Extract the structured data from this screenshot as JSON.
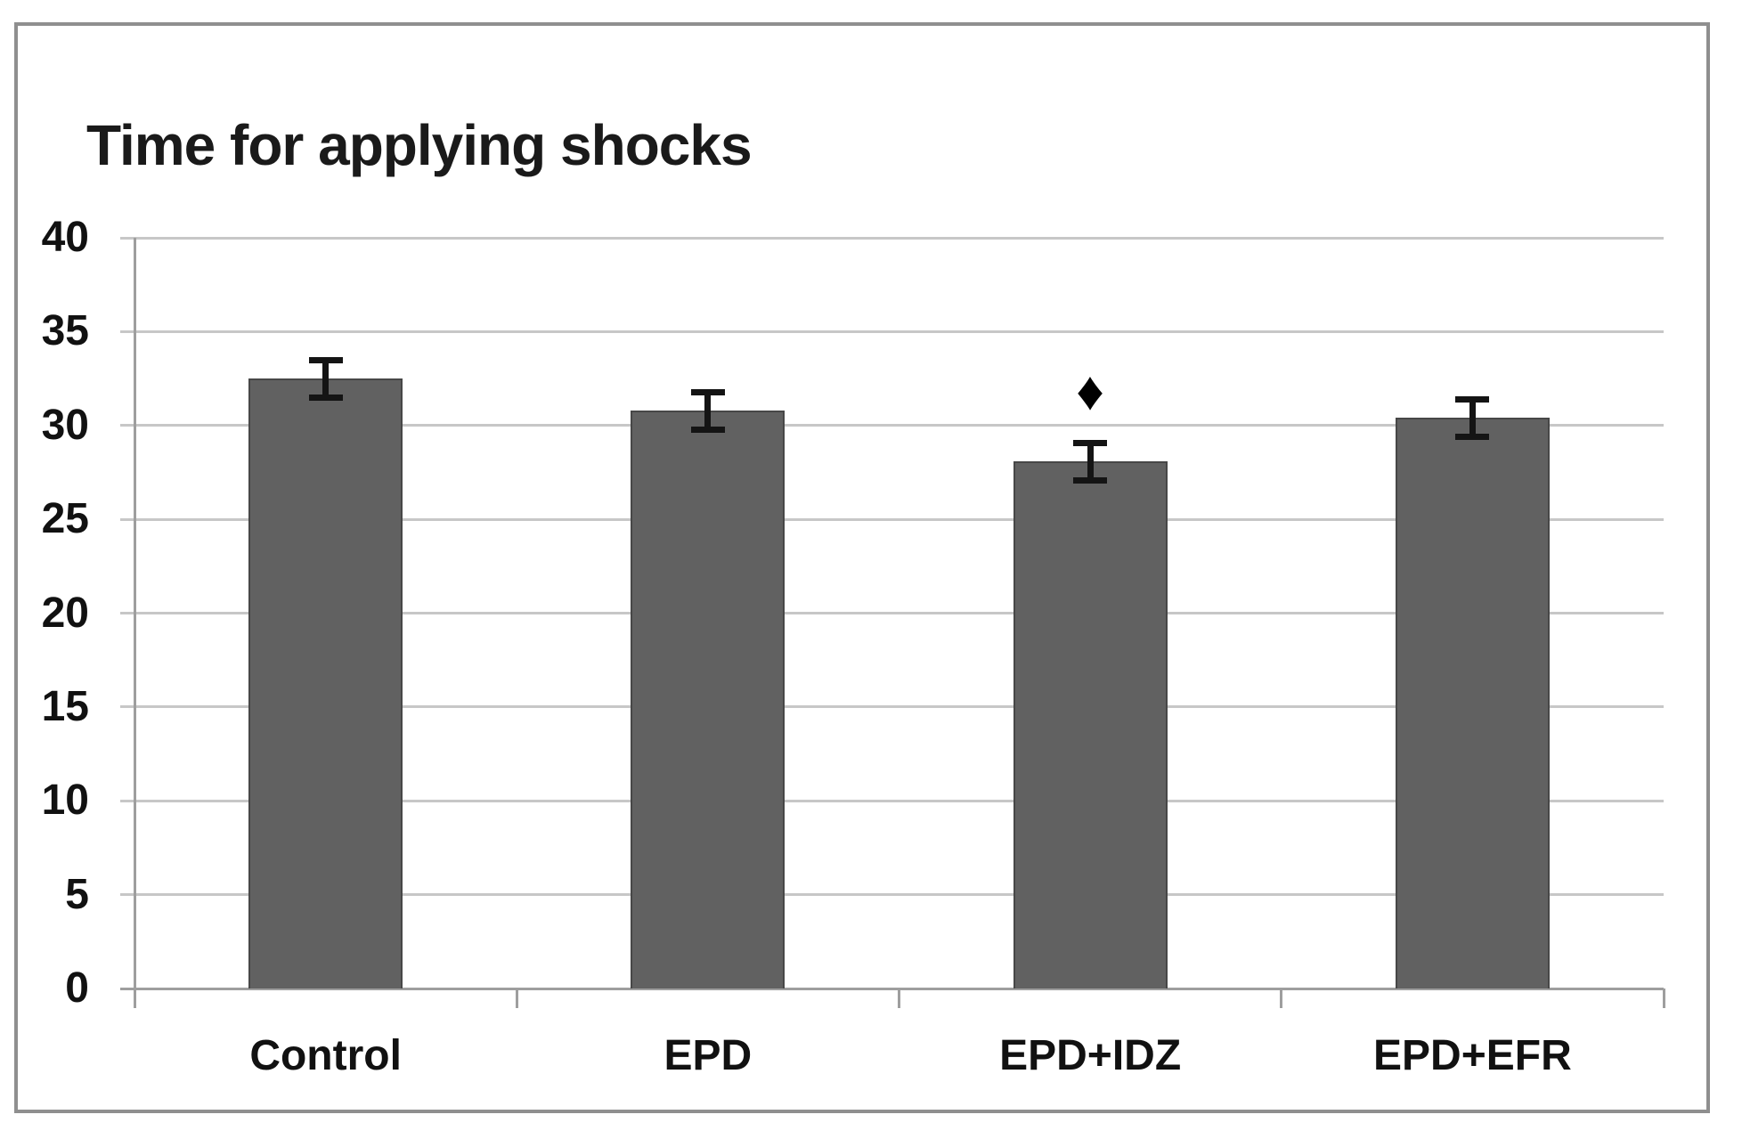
{
  "chart_data": {
    "type": "bar",
    "title": "Time for applying shocks",
    "categories": [
      "Control",
      "EPD",
      "EPD+IDZ",
      "EPD+EFR"
    ],
    "values": [
      32.5,
      30.8,
      28.1,
      30.4
    ],
    "errors": [
      1.0,
      1.0,
      1.0,
      1.0
    ],
    "ylim": [
      0,
      40
    ],
    "yticks": [
      0,
      5,
      10,
      15,
      20,
      25,
      30,
      35,
      40
    ],
    "xlabel": "",
    "ylabel": "",
    "grid": true,
    "legend": null,
    "annotations": [
      {
        "symbol": "♦",
        "name": "significance-diamond",
        "category": "EPD+IDZ",
        "value": 31.8
      }
    ],
    "colors": {
      "bar_fill": "#616161",
      "bar_border": "#474747",
      "gridline": "#c7c7c7",
      "axis": "#9e9e9e",
      "frame": "#8f8f8f",
      "error_bar": "#141414",
      "text": "#111111"
    }
  }
}
